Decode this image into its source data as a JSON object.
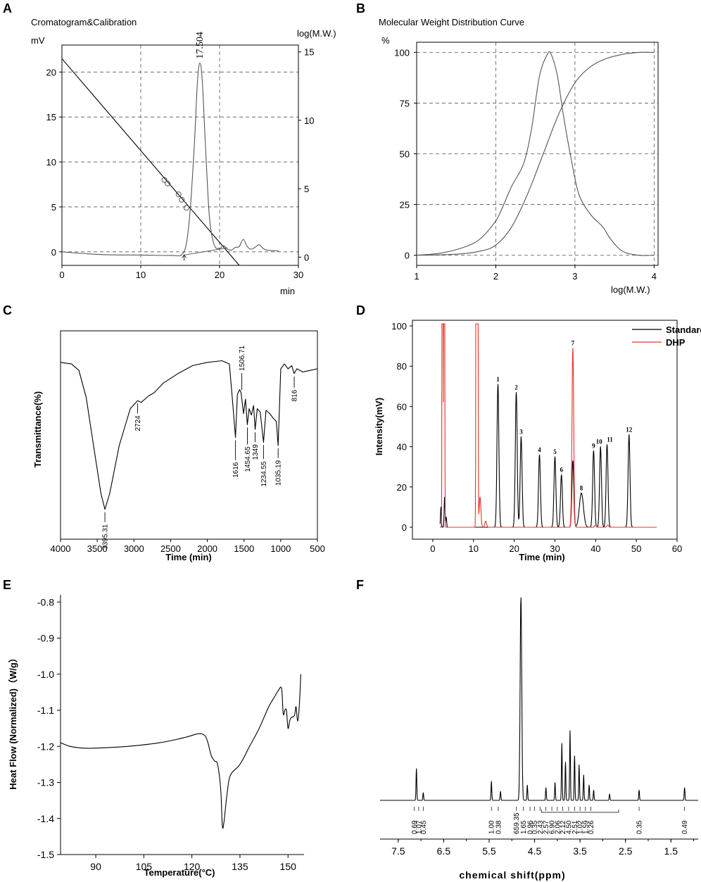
{
  "colors": {
    "standard": "#000000",
    "dhp": "#e8312a",
    "curve": "#555555"
  },
  "panels": {
    "A": {
      "letter": "A",
      "title": "Cromatogram&Calibration",
      "y_unit": "mV",
      "y2_unit": "log(M.W.)",
      "x_unit": "min",
      "peak_label": "17.504"
    },
    "B": {
      "letter": "B",
      "title": "Molecular Weight Distribution Curve",
      "y_unit": "%",
      "x_unit": "log(M.W.)"
    },
    "C": {
      "letter": "C",
      "xlabel": "Time (min)",
      "ylabel": "Transmittance(%)"
    },
    "D": {
      "letter": "D",
      "xlabel": "Time (min)",
      "ylabel": "Intensity(mV)",
      "legend": [
        "Standard",
        "DHP"
      ]
    },
    "E": {
      "letter": "E",
      "xlabel": "Temperature(°C)",
      "ylabel": "Heat Flow (Normalized)（W/g）"
    },
    "F": {
      "letter": "F",
      "xlabel": "chemical shift(ppm)"
    }
  },
  "chart_data": [
    {
      "id": "A",
      "type": "line",
      "title": "Cromatogram&Calibration",
      "xlabel": "min",
      "ylabel": "mV",
      "y2label": "log(M.W.)",
      "xlim": [
        0,
        30
      ],
      "ylim": [
        -1.5,
        23
      ],
      "y2lim": [
        -0.6,
        15.5
      ],
      "xticks": [
        0,
        10,
        20,
        30
      ],
      "yticks": [
        0,
        5,
        10,
        15,
        20
      ],
      "y2ticks": [
        0,
        5,
        10,
        15
      ],
      "grid": true,
      "calibration_line": {
        "x": [
          0,
          22.5
        ],
        "y2": [
          14.5,
          -0.6
        ]
      },
      "calibration_points": [
        {
          "x": 13.0,
          "y": 8.0
        },
        {
          "x": 13.4,
          "y": 7.6
        },
        {
          "x": 14.8,
          "y": 6.4
        },
        {
          "x": 15.2,
          "y": 5.8
        },
        {
          "x": 15.8,
          "y": 4.9
        }
      ],
      "chromatogram": {
        "x": [
          0,
          5,
          10,
          14,
          15.2,
          15.8,
          16.3,
          16.8,
          17.2,
          17.504,
          17.8,
          18.2,
          18.7,
          19.3,
          20,
          20.5,
          21,
          21.5,
          22,
          22.5,
          23,
          23.5,
          24,
          24.5,
          25,
          25.5,
          26,
          27.5
        ],
        "y": [
          0,
          -0.3,
          -0.35,
          -0.4,
          -0.3,
          1.0,
          5.0,
          12.0,
          19.0,
          21.0,
          19.0,
          12.0,
          4.0,
          0.8,
          0.4,
          0.7,
          0.3,
          0.2,
          0.5,
          0.6,
          1.4,
          0.6,
          0.3,
          0.5,
          0.8,
          0.4,
          0.2,
          0.1
        ]
      },
      "peak_label": "17.504"
    },
    {
      "id": "B",
      "type": "line",
      "title": "Molecular Weight Distribution Curve",
      "xlabel": "log(M.W.)",
      "ylabel": "%",
      "xlim": [
        1,
        4.05
      ],
      "ylim": [
        -5,
        105
      ],
      "xticks": [
        1,
        2,
        3,
        4
      ],
      "yticks": [
        0,
        25,
        50,
        75,
        100
      ],
      "grid": true,
      "series": [
        {
          "name": "distribution",
          "x": [
            1,
            1.3,
            1.6,
            1.8,
            2.0,
            2.1,
            2.2,
            2.35,
            2.45,
            2.55,
            2.65,
            2.7,
            2.78,
            2.85,
            2.95,
            3.05,
            3.2,
            3.35,
            3.45,
            3.6,
            3.8,
            4.0
          ],
          "y": [
            0,
            1,
            4,
            8,
            17,
            25,
            34,
            45,
            62,
            88,
            99,
            99,
            88,
            70,
            48,
            30,
            20,
            14,
            8,
            2,
            0,
            0
          ]
        },
        {
          "name": "cumulative",
          "x": [
            1,
            1.5,
            1.8,
            2.0,
            2.2,
            2.4,
            2.6,
            2.8,
            3.0,
            3.2,
            3.4,
            3.6,
            3.8,
            4.0
          ],
          "y": [
            0,
            0.5,
            2,
            5,
            14,
            30,
            50,
            70,
            85,
            93,
            97,
            99,
            100,
            100
          ]
        }
      ]
    },
    {
      "id": "C",
      "type": "line",
      "xlabel": "Time (min)",
      "ylabel": "Transmittance(%)",
      "xlim": [
        4000,
        500
      ],
      "xticks": [
        4000,
        3500,
        3000,
        2500,
        2000,
        1500,
        1000,
        500
      ],
      "curve_x": [
        4000,
        3850,
        3750,
        3650,
        3550,
        3450,
        3395.31,
        3330,
        3200,
        3050,
        2950,
        2900,
        2800,
        2724,
        2600,
        2400,
        2200,
        2000,
        1800,
        1700,
        1660,
        1616,
        1590,
        1560,
        1540,
        1506.71,
        1480,
        1454.65,
        1430,
        1400,
        1370,
        1349,
        1320,
        1280,
        1234.55,
        1200,
        1150,
        1100,
        1060,
        1035.19,
        1000,
        950,
        900,
        850,
        816,
        780,
        700,
        600,
        500
      ],
      "curve_t": [
        0.97,
        0.96,
        0.92,
        0.75,
        0.45,
        0.15,
        0.05,
        0.15,
        0.45,
        0.68,
        0.73,
        0.72,
        0.76,
        0.78,
        0.84,
        0.9,
        0.95,
        0.97,
        0.98,
        0.96,
        0.75,
        0.5,
        0.77,
        0.8,
        0.78,
        0.65,
        0.74,
        0.58,
        0.68,
        0.64,
        0.7,
        0.55,
        0.68,
        0.66,
        0.47,
        0.67,
        0.65,
        0.62,
        0.6,
        0.45,
        0.93,
        0.96,
        0.93,
        0.95,
        0.9,
        0.93,
        0.91,
        0.92,
        0.93
      ],
      "peak_labels": [
        "3395.31",
        "2724",
        "1616",
        "1506.71",
        "1454.65",
        "1349",
        "1234.55",
        "1035.19",
        "816"
      ]
    },
    {
      "id": "D",
      "type": "line",
      "xlabel": "Time (min)",
      "ylabel": "Intensity(mV)",
      "xlim": [
        -5,
        60
      ],
      "ylim": [
        -4,
        100
      ],
      "xticks": [
        0,
        10,
        20,
        30,
        40,
        50,
        60
      ],
      "yticks": [
        0,
        20,
        40,
        60,
        80,
        100
      ],
      "legend": [
        "Standard",
        "DHP"
      ],
      "standard_peaks": [
        {
          "label": "1",
          "x": 16.0,
          "y": 71
        },
        {
          "label": "2",
          "x": 20.5,
          "y": 67
        },
        {
          "label": "3",
          "x": 21.7,
          "y": 45
        },
        {
          "label": "4",
          "x": 26.2,
          "y": 36
        },
        {
          "label": "5",
          "x": 30.0,
          "y": 35
        },
        {
          "label": "6",
          "x": 31.6,
          "y": 26
        },
        {
          "label": "7",
          "x": 34.4,
          "y": 33
        },
        {
          "label": "8",
          "x": 36.5,
          "y": 17
        },
        {
          "label": "9",
          "x": 39.5,
          "y": 38
        },
        {
          "label": "10",
          "x": 41.2,
          "y": 40
        },
        {
          "label": "11",
          "x": 42.8,
          "y": 41
        },
        {
          "label": "12",
          "x": 48.2,
          "y": 46
        }
      ],
      "standard_small": [
        {
          "x": 2.0,
          "y": 10
        },
        {
          "x": 2.9,
          "y": 15
        },
        {
          "x": 3.3,
          "y": 5
        }
      ],
      "dhp_peaks": [
        {
          "x": 2.4,
          "y": 100
        },
        {
          "x": 2.8,
          "y": 100
        },
        {
          "x": 10.7,
          "y": 100
        },
        {
          "x": 11.0,
          "y": 100
        },
        {
          "x": 11.6,
          "y": 15
        },
        {
          "x": 13.0,
          "y": 3
        },
        {
          "x": 34.4,
          "y": 89
        },
        {
          "x": 40.0,
          "y": 1
        },
        {
          "x": 43.0,
          "y": 1
        }
      ],
      "dhp_label_peak": {
        "label": "7",
        "x": 34.4,
        "y": 89
      }
    },
    {
      "id": "E",
      "type": "line",
      "xlabel": "Temperature(°C)",
      "ylabel": "Heat Flow (Normalized)（W/g）",
      "xlim": [
        79,
        155
      ],
      "ylim": [
        -1.5,
        -0.78
      ],
      "xticks": [
        90,
        105,
        120,
        135,
        150
      ],
      "yticks": [
        -1.5,
        -1.4,
        -1.3,
        -1.2,
        -1.1,
        -1.0,
        -0.9,
        -0.8
      ],
      "x": [
        79,
        82,
        86,
        90,
        100,
        110,
        118,
        122,
        124,
        125,
        126,
        127,
        128,
        129,
        129.5,
        130,
        131,
        132,
        135,
        138,
        141,
        144,
        146,
        147,
        148,
        148.5,
        149,
        149.5,
        150,
        150.5,
        151,
        152,
        152.5,
        153,
        153.5,
        154
      ],
      "y": [
        -1.19,
        -1.2,
        -1.205,
        -1.205,
        -1.2,
        -1.19,
        -1.175,
        -1.165,
        -1.17,
        -1.19,
        -1.225,
        -1.24,
        -1.25,
        -1.32,
        -1.42,
        -1.41,
        -1.33,
        -1.28,
        -1.25,
        -1.2,
        -1.15,
        -1.09,
        -1.06,
        -1.045,
        -1.04,
        -1.11,
        -1.1,
        -1.1,
        -1.15,
        -1.13,
        -1.12,
        -1.115,
        -1.09,
        -1.13,
        -1.09,
        -1.0
      ]
    },
    {
      "id": "F",
      "type": "line",
      "xlabel": "chemical shift(ppm)",
      "xlim": [
        7.9,
        0.9
      ],
      "xticks": [
        7.5,
        6.5,
        5.5,
        4.5,
        3.5,
        2.5,
        1.5
      ],
      "peaks": [
        {
          "ppm": 7.1,
          "h": 0.25
        },
        {
          "ppm": 6.95,
          "h": 0.06
        },
        {
          "ppm": 5.45,
          "h": 0.15
        },
        {
          "ppm": 5.25,
          "h": 0.07
        },
        {
          "ppm": 4.8,
          "h": 1.6
        },
        {
          "ppm": 4.66,
          "h": 0.12
        },
        {
          "ppm": 4.25,
          "h": 0.1
        },
        {
          "ppm": 4.05,
          "h": 0.14
        },
        {
          "ppm": 3.9,
          "h": 0.45
        },
        {
          "ppm": 3.82,
          "h": 0.3
        },
        {
          "ppm": 3.72,
          "h": 0.55
        },
        {
          "ppm": 3.62,
          "h": 0.35
        },
        {
          "ppm": 3.52,
          "h": 0.28
        },
        {
          "ppm": 3.42,
          "h": 0.2
        },
        {
          "ppm": 3.3,
          "h": 0.12
        },
        {
          "ppm": 3.2,
          "h": 0.08
        },
        {
          "ppm": 2.85,
          "h": 0.05
        },
        {
          "ppm": 2.2,
          "h": 0.08
        },
        {
          "ppm": 1.2,
          "h": 0.1
        }
      ],
      "integrals": [
        {
          "ppm": 7.15,
          "v": "0.69"
        },
        {
          "ppm": 7.05,
          "v": "1.07"
        },
        {
          "ppm": 6.95,
          "v": "0.45"
        },
        {
          "ppm": 5.45,
          "v": "1.00"
        },
        {
          "ppm": 5.3,
          "v": "0.38"
        },
        {
          "ppm": 4.9,
          "v": "659.35"
        },
        {
          "ppm": 4.75,
          "v": "1.65"
        },
        {
          "ppm": 4.6,
          "v": "0.96"
        },
        {
          "ppm": 4.5,
          "v": "0.35"
        },
        {
          "ppm": 4.38,
          "v": "2.43"
        },
        {
          "ppm": 4.25,
          "v": "2.57"
        },
        {
          "ppm": 4.12,
          "v": "6.90"
        },
        {
          "ppm": 4.0,
          "v": "2.06"
        },
        {
          "ppm": 3.88,
          "v": "2.12"
        },
        {
          "ppm": 3.75,
          "v": "4.50"
        },
        {
          "ppm": 3.62,
          "v": "2.51"
        },
        {
          "ppm": 3.5,
          "v": "1.02"
        },
        {
          "ppm": 3.38,
          "v": "1.59"
        },
        {
          "ppm": 3.26,
          "v": "0.26"
        },
        {
          "ppm": 2.2,
          "v": "0.35"
        },
        {
          "ppm": 1.2,
          "v": "0.49"
        }
      ]
    }
  ]
}
